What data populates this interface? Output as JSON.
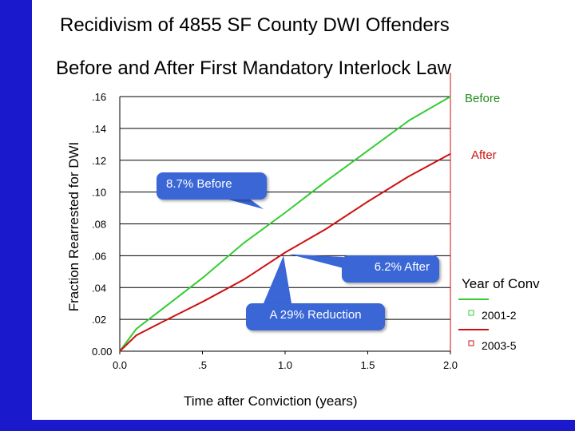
{
  "title": "Recidivism of 4855 SF County  DWI Offenders",
  "subtitle": "Before and After First Mandatory Interlock Law",
  "colors": {
    "background": "#1a1acc",
    "before": "#33cc33",
    "after": "#cc1111",
    "callout": "#3a66d6"
  },
  "callouts": {
    "before": "8.7% Before",
    "after": "6.2% After",
    "reduction": "A 29% Reduction"
  },
  "series_labels": {
    "before": "Before",
    "after": "After"
  },
  "chart_data": {
    "type": "line",
    "xlabel": "Time after Conviction (years)",
    "ylabel": "Fraction Rearrested for DWI",
    "xlim": [
      0,
      2
    ],
    "ylim": [
      0,
      0.16
    ],
    "x_ticks": [
      "0.0",
      ".5",
      "1.0",
      "1.5",
      "2.0"
    ],
    "y_ticks": [
      "0.00",
      ".02",
      ".04",
      ".06",
      ".08",
      ".10",
      ".12",
      ".14",
      ".16"
    ],
    "grid": true,
    "legend": {
      "title": "Year of Conv",
      "position": "right",
      "entries": [
        "2001-2",
        "2003-5"
      ]
    },
    "series": [
      {
        "name": "2001-2",
        "x": [
          0,
          0.1,
          0.25,
          0.5,
          0.75,
          1.0,
          1.25,
          1.5,
          1.75,
          2.0
        ],
        "values": [
          0,
          0.014,
          0.026,
          0.046,
          0.068,
          0.087,
          0.107,
          0.126,
          0.145,
          0.16
        ]
      },
      {
        "name": "2003-5",
        "x": [
          0,
          0.1,
          0.25,
          0.5,
          0.75,
          1.0,
          1.25,
          1.5,
          1.75,
          2.0
        ],
        "values": [
          0,
          0.01,
          0.018,
          0.031,
          0.045,
          0.062,
          0.077,
          0.094,
          0.11,
          0.124
        ]
      }
    ]
  }
}
